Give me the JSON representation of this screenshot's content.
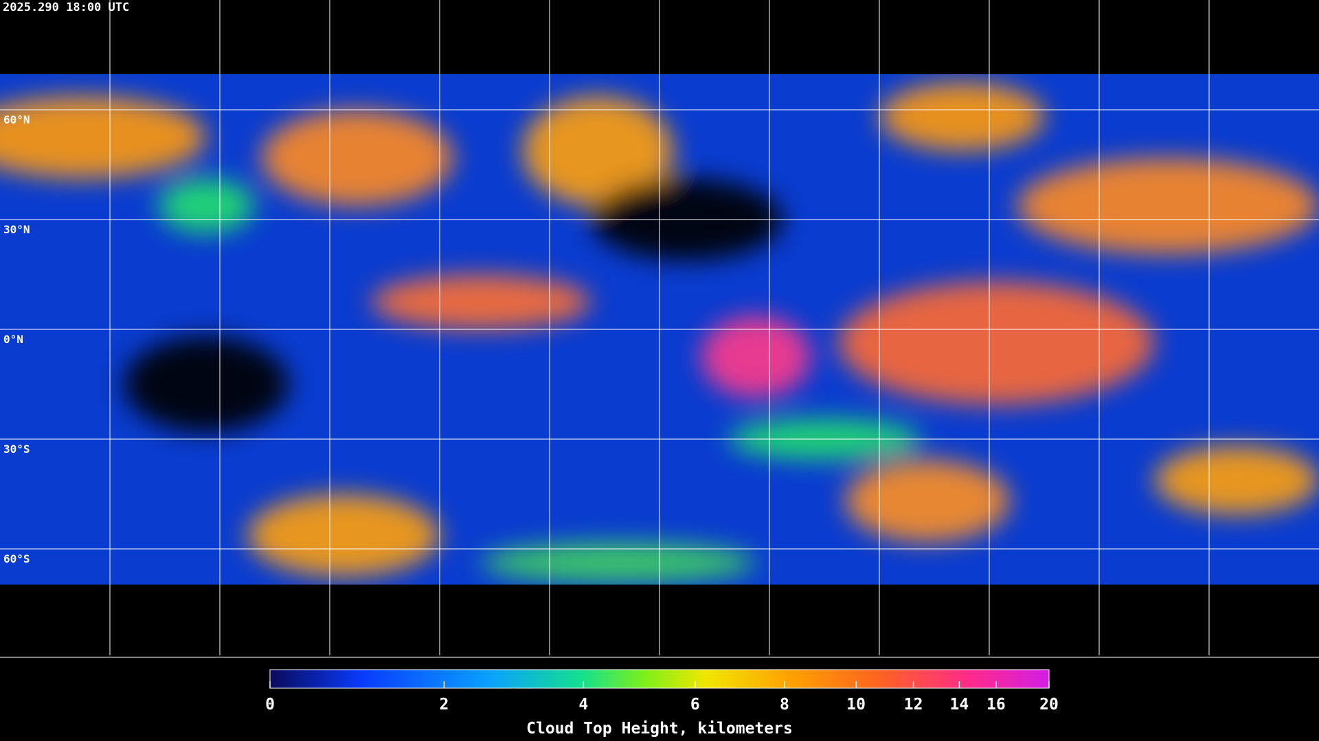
{
  "header": {
    "timestamp": "2025.290 18:00 UTC"
  },
  "map": {
    "latitude_labels": [
      "60°N",
      "30°N",
      "0°N",
      "30°S",
      "60°S"
    ]
  },
  "colorbar": {
    "title": "Cloud Top Height, kilometers",
    "range": [
      0,
      20
    ],
    "ticks": [
      0,
      2,
      4,
      6,
      8,
      10,
      12,
      14,
      16,
      20
    ]
  }
}
